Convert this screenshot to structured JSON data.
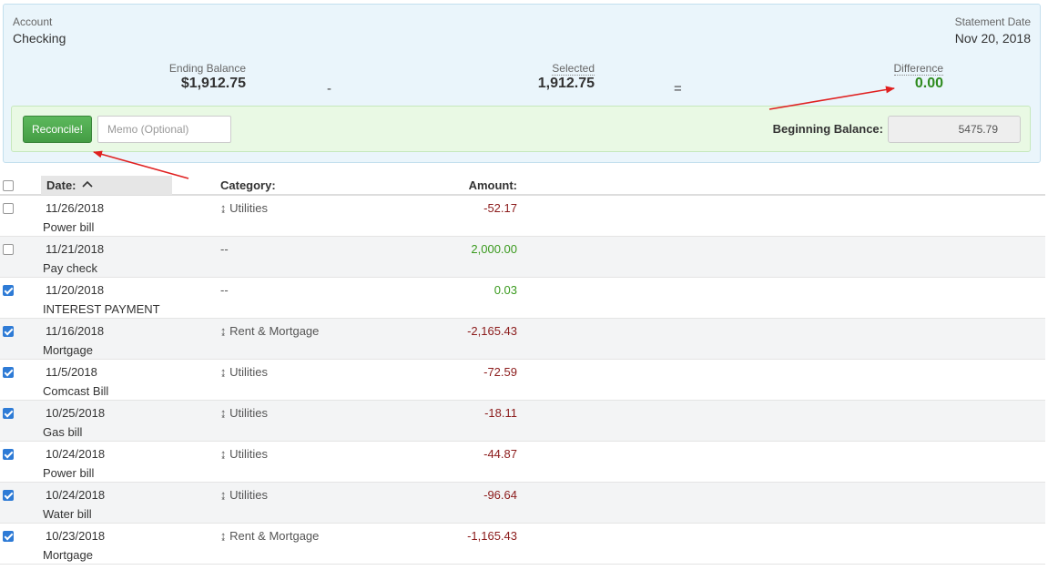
{
  "account": {
    "label": "Account",
    "value": "Checking"
  },
  "statement": {
    "label": "Statement Date",
    "value": "Nov 20, 2018"
  },
  "summary": {
    "ending_label": "Ending Balance",
    "ending_value": "$1,912.75",
    "minus": "-",
    "selected_label": "Selected",
    "selected_value": "1,912.75",
    "equals": "=",
    "difference_label": "Difference",
    "difference_value": "0.00"
  },
  "actions": {
    "reconcile_label": "Reconcile!",
    "memo_placeholder": "Memo (Optional)",
    "beginning_label": "Beginning Balance:",
    "beginning_value": "5475.79"
  },
  "table": {
    "headers": {
      "date": "Date:",
      "sort_icon": "^",
      "category": "Category:",
      "amount": "Amount:"
    },
    "rows": [
      {
        "checked": false,
        "date": "11/26/2018",
        "payee": "Power bill",
        "category": "↨ Utilities",
        "amount": "-52.17",
        "sign": "neg"
      },
      {
        "checked": false,
        "date": "11/21/2018",
        "payee": "Pay check",
        "category": "--",
        "amount": "2,000.00",
        "sign": "pos"
      },
      {
        "checked": true,
        "date": "11/20/2018",
        "payee": "INTEREST PAYMENT",
        "category": "--",
        "amount": "0.03",
        "sign": "pos"
      },
      {
        "checked": true,
        "date": "11/16/2018",
        "payee": "Mortgage",
        "category": "↨ Rent & Mortgage",
        "amount": "-2,165.43",
        "sign": "neg"
      },
      {
        "checked": true,
        "date": "11/5/2018",
        "payee": "Comcast Bill",
        "category": "↨ Utilities",
        "amount": "-72.59",
        "sign": "neg"
      },
      {
        "checked": true,
        "date": "10/25/2018",
        "payee": "Gas bill",
        "category": "↨ Utilities",
        "amount": "-18.11",
        "sign": "neg"
      },
      {
        "checked": true,
        "date": "10/24/2018",
        "payee": "Power bill",
        "category": "↨ Utilities",
        "amount": "-44.87",
        "sign": "neg"
      },
      {
        "checked": true,
        "date": "10/24/2018",
        "payee": "Water bill",
        "category": "↨ Utilities",
        "amount": "-96.64",
        "sign": "neg"
      },
      {
        "checked": true,
        "date": "10/23/2018",
        "payee": "Mortgage",
        "category": "↨ Rent & Mortgage",
        "amount": "-1,165.43",
        "sign": "neg"
      }
    ]
  },
  "colors": {
    "panel_bg": "#eaf5fb",
    "action_bg": "#e9f9e4",
    "positive": "#3a9a1e",
    "negative": "#8b1a1a",
    "annotation": "#e02020"
  }
}
